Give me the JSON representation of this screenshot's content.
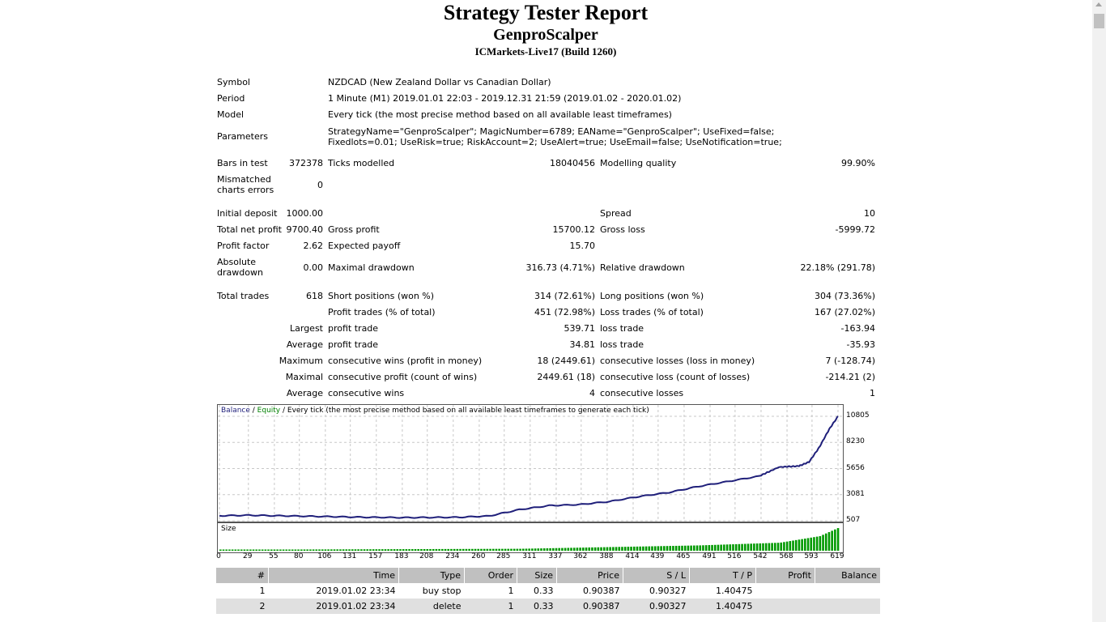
{
  "report": {
    "title": "Strategy Tester Report",
    "expert": "GenproScalper",
    "server": "ICMarkets-Live17 (Build 1260)"
  },
  "settings": {
    "symbol_label": "Symbol",
    "symbol_value": "NZDCAD (New Zealand Dollar vs Canadian Dollar)",
    "period_label": "Period",
    "period_value": "1 Minute (M1) 2019.01.01 22:03 - 2019.12.31 21:59 (2019.01.02 - 2020.01.02)",
    "model_label": "Model",
    "model_value": "Every tick (the most precise method based on all available least timeframes)",
    "parameters_label": "Parameters",
    "parameters_value": "StrategyName=\"GenproScalper\"; MagicNumber=6789; EAName=\"GenproScalper\"; UseFixed=false; Fixedlots=0.01; UseRisk=true; RiskAccount=2; UseAlert=true; UseEmail=false; UseNotification=true;"
  },
  "stats": {
    "bars_in_test_label": "Bars in test",
    "bars_in_test": "372378",
    "ticks_modelled_label": "Ticks modelled",
    "ticks_modelled": "18040456",
    "modelling_quality_label": "Modelling quality",
    "modelling_quality": "99.90%",
    "mismatched_label": "Mismatched charts errors",
    "mismatched": "0",
    "initial_deposit_label": "Initial deposit",
    "initial_deposit": "1000.00",
    "spread_label": "Spread",
    "spread": "10",
    "total_net_profit_label": "Total net profit",
    "total_net_profit": "9700.40",
    "gross_profit_label": "Gross profit",
    "gross_profit": "15700.12",
    "gross_loss_label": "Gross loss",
    "gross_loss": "-5999.72",
    "profit_factor_label": "Profit factor",
    "profit_factor": "2.62",
    "expected_payoff_label": "Expected payoff",
    "expected_payoff": "15.70",
    "absolute_drawdown_label": "Absolute drawdown",
    "absolute_drawdown": "0.00",
    "maximal_drawdown_label": "Maximal drawdown",
    "maximal_drawdown": "316.73 (4.71%)",
    "relative_drawdown_label": "Relative drawdown",
    "relative_drawdown": "22.18% (291.78)",
    "total_trades_label": "Total trades",
    "total_trades": "618",
    "short_positions_label": "Short positions (won %)",
    "short_positions": "314 (72.61%)",
    "long_positions_label": "Long positions (won %)",
    "long_positions": "304 (73.36%)",
    "profit_trades_label": "Profit trades (% of total)",
    "profit_trades": "451 (72.98%)",
    "loss_trades_label": "Loss trades (% of total)",
    "loss_trades": "167 (27.02%)",
    "largest_label": "Largest",
    "largest_profit_label": "profit trade",
    "largest_profit": "539.71",
    "largest_loss_label": "loss trade",
    "largest_loss": "-163.94",
    "average_label": "Average",
    "average_profit_label": "profit trade",
    "average_profit": "34.81",
    "average_loss_label": "loss trade",
    "average_loss": "-35.93",
    "maximum_label": "Maximum",
    "max_consec_wins_label": "consecutive wins (profit in money)",
    "max_consec_wins": "18 (2449.61)",
    "max_consec_losses_label": "consecutive losses (loss in money)",
    "max_consec_losses": "7 (-128.74)",
    "maximal_label": "Maximal",
    "maximal_consec_profit_label": "consecutive profit (count of wins)",
    "maximal_consec_profit": "2449.61 (18)",
    "maximal_consec_loss_label": "consecutive loss (count of losses)",
    "maximal_consec_loss": "-214.21 (2)",
    "avg_consec_label": "Average",
    "avg_consec_wins_label": "consecutive wins",
    "avg_consec_wins": "4",
    "avg_consec_losses_label": "consecutive losses",
    "avg_consec_losses": "1"
  },
  "chart_header": {
    "balance": "Balance",
    "sep1": " / ",
    "equity": "Equity",
    "rest": " / Every tick (the most precise method based on all available least timeframes to generate each tick)",
    "size_label": "Size",
    "balance_color": "#1f1f7a",
    "equity_color": "#008000",
    "bar_color": "#009900"
  },
  "chart_data": [
    {
      "type": "line",
      "series": [
        {
          "name": "Balance",
          "x": [
            0,
            30,
            60,
            90,
            120,
            150,
            180,
            210,
            240,
            270,
            300,
            330,
            360,
            390,
            420,
            450,
            480,
            510,
            540,
            560,
            580,
            590,
            600,
            610,
            619
          ],
          "y": [
            1000,
            1050,
            1000,
            950,
            900,
            850,
            820,
            830,
            850,
            980,
            1600,
            2000,
            2100,
            2400,
            2900,
            3300,
            3900,
            4400,
            4900,
            5800,
            5900,
            6300,
            7700,
            9500,
            10805
          ]
        }
      ],
      "y_ticks": [
        "10805",
        "8230",
        "5656",
        "3081",
        "507"
      ],
      "ylim": [
        507,
        10805
      ],
      "x_ticks": [
        "0",
        "29",
        "55",
        "80",
        "106",
        "131",
        "157",
        "183",
        "208",
        "234",
        "260",
        "285",
        "311",
        "337",
        "362",
        "388",
        "414",
        "439",
        "465",
        "491",
        "516",
        "542",
        "568",
        "593",
        "619"
      ],
      "grid": true
    },
    {
      "type": "bar",
      "title": "Size",
      "x": [
        0,
        300,
        480,
        560,
        600,
        619
      ],
      "values": [
        0.04,
        0.08,
        0.22,
        0.33,
        0.6,
        0.95
      ]
    }
  ],
  "trades": {
    "headers": [
      "#",
      "Time",
      "Type",
      "Order",
      "Size",
      "Price",
      "S / L",
      "T / P",
      "Profit",
      "Balance"
    ],
    "rows": [
      [
        "1",
        "2019.01.02 23:34",
        "buy stop",
        "1",
        "0.33",
        "0.90387",
        "0.90327",
        "1.40475",
        "",
        ""
      ],
      [
        "2",
        "2019.01.02 23:34",
        "delete",
        "1",
        "0.33",
        "0.90387",
        "0.90327",
        "1.40475",
        "",
        ""
      ]
    ]
  }
}
